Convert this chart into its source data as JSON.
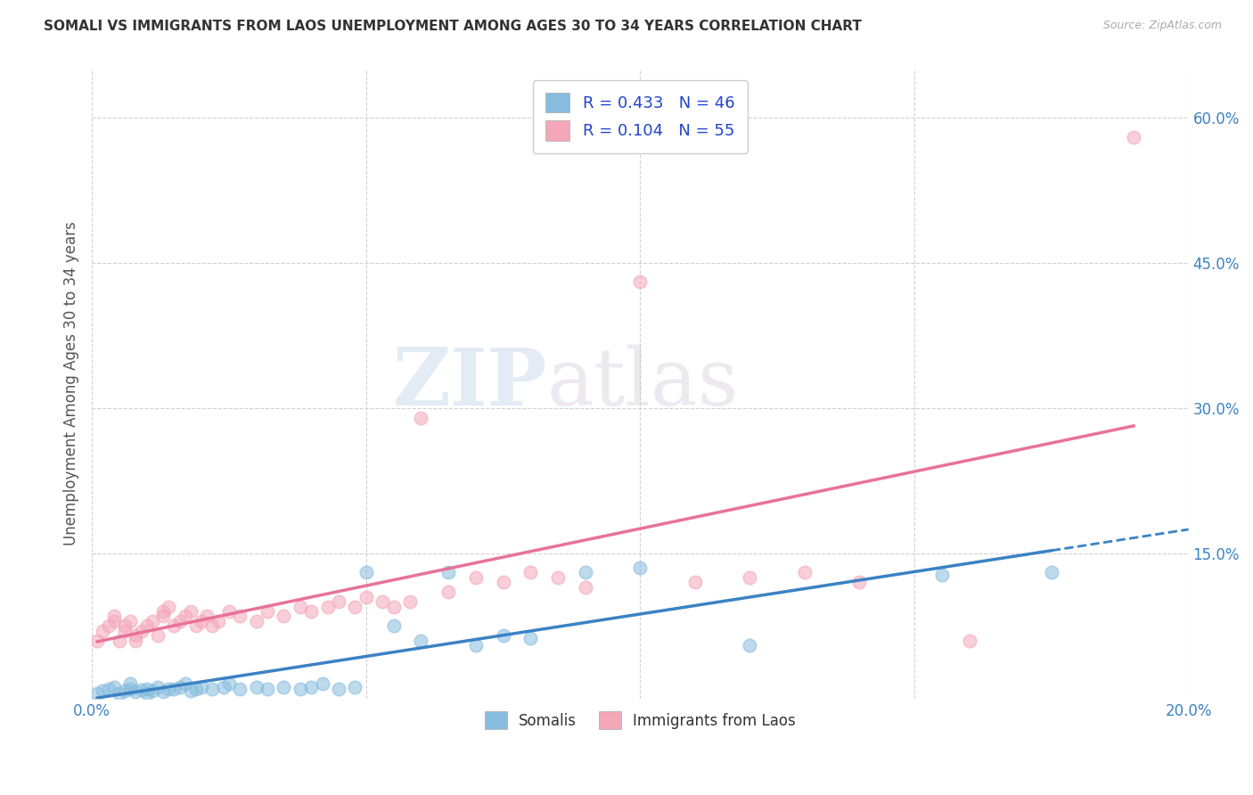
{
  "title": "SOMALI VS IMMIGRANTS FROM LAOS UNEMPLOYMENT AMONG AGES 30 TO 34 YEARS CORRELATION CHART",
  "source": "Source: ZipAtlas.com",
  "ylabel": "Unemployment Among Ages 30 to 34 years",
  "xlim": [
    0.0,
    0.2
  ],
  "ylim": [
    0.0,
    0.65
  ],
  "x_ticks": [
    0.0,
    0.05,
    0.1,
    0.15,
    0.2
  ],
  "x_tick_labels": [
    "0.0%",
    "",
    "",
    "",
    "20.0%"
  ],
  "y_ticks": [
    0.0,
    0.15,
    0.3,
    0.45,
    0.6
  ],
  "y_tick_labels": [
    "",
    "15.0%",
    "30.0%",
    "45.0%",
    "60.0%"
  ],
  "somali_R": 0.433,
  "somali_N": 46,
  "laos_R": 0.104,
  "laos_N": 55,
  "somali_color": "#87BCDE",
  "laos_color": "#F4A7B9",
  "somali_line_color": "#3B82C4",
  "laos_line_color": "#E8729A",
  "watermark_ZIP": "ZIP",
  "watermark_atlas": "atlas",
  "legend_label_somali": "Somalis",
  "legend_label_laos": "Immigrants from Laos",
  "somali_x": [
    0.001,
    0.002,
    0.003,
    0.004,
    0.005,
    0.006,
    0.007,
    0.007,
    0.008,
    0.009,
    0.01,
    0.01,
    0.011,
    0.012,
    0.013,
    0.014,
    0.015,
    0.016,
    0.017,
    0.018,
    0.019,
    0.02,
    0.022,
    0.024,
    0.025,
    0.027,
    0.03,
    0.032,
    0.035,
    0.038,
    0.04,
    0.042,
    0.045,
    0.048,
    0.05,
    0.055,
    0.06,
    0.065,
    0.07,
    0.075,
    0.08,
    0.09,
    0.1,
    0.12,
    0.155,
    0.175
  ],
  "somali_y": [
    0.005,
    0.008,
    0.01,
    0.012,
    0.005,
    0.008,
    0.01,
    0.015,
    0.007,
    0.009,
    0.005,
    0.01,
    0.008,
    0.012,
    0.007,
    0.01,
    0.01,
    0.012,
    0.015,
    0.008,
    0.01,
    0.012,
    0.01,
    0.012,
    0.015,
    0.01,
    0.012,
    0.01,
    0.012,
    0.01,
    0.012,
    0.015,
    0.01,
    0.012,
    0.13,
    0.075,
    0.06,
    0.13,
    0.055,
    0.065,
    0.062,
    0.13,
    0.135,
    0.055,
    0.128,
    0.13
  ],
  "laos_x": [
    0.001,
    0.002,
    0.003,
    0.004,
    0.004,
    0.005,
    0.006,
    0.006,
    0.007,
    0.008,
    0.008,
    0.009,
    0.01,
    0.011,
    0.012,
    0.013,
    0.013,
    0.014,
    0.015,
    0.016,
    0.017,
    0.018,
    0.019,
    0.02,
    0.021,
    0.022,
    0.023,
    0.025,
    0.027,
    0.03,
    0.032,
    0.035,
    0.038,
    0.04,
    0.043,
    0.045,
    0.048,
    0.05,
    0.053,
    0.055,
    0.058,
    0.06,
    0.065,
    0.07,
    0.075,
    0.08,
    0.085,
    0.09,
    0.1,
    0.11,
    0.12,
    0.13,
    0.14,
    0.16,
    0.19
  ],
  "laos_y": [
    0.06,
    0.07,
    0.075,
    0.08,
    0.085,
    0.06,
    0.07,
    0.075,
    0.08,
    0.06,
    0.065,
    0.07,
    0.075,
    0.08,
    0.065,
    0.085,
    0.09,
    0.095,
    0.075,
    0.08,
    0.085,
    0.09,
    0.075,
    0.08,
    0.085,
    0.075,
    0.08,
    0.09,
    0.085,
    0.08,
    0.09,
    0.085,
    0.095,
    0.09,
    0.095,
    0.1,
    0.095,
    0.105,
    0.1,
    0.095,
    0.1,
    0.29,
    0.11,
    0.125,
    0.12,
    0.13,
    0.125,
    0.115,
    0.43,
    0.12,
    0.125,
    0.13,
    0.12,
    0.06,
    0.58
  ]
}
